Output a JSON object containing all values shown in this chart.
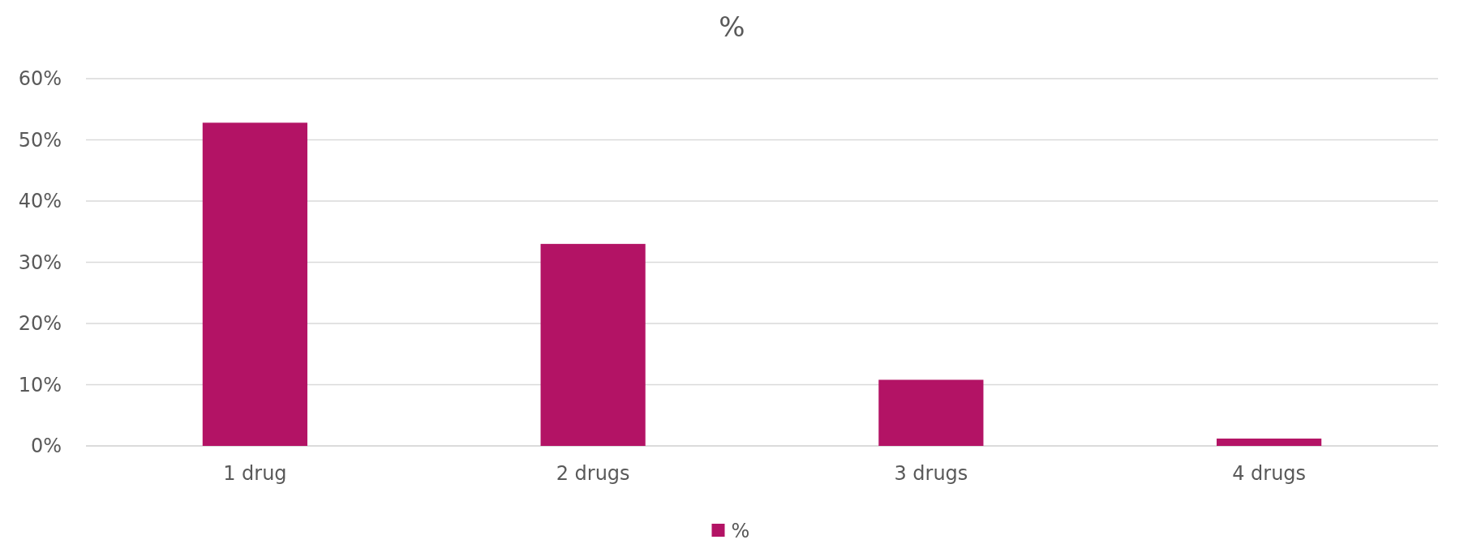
{
  "chart_data": {
    "type": "bar",
    "title": "%",
    "categories": [
      "1 drug",
      "2 drugs",
      "3 drugs",
      "4 drugs"
    ],
    "series": [
      {
        "name": "%",
        "color": "#b31365",
        "values": [
          52.8,
          33.0,
          10.8,
          1.2
        ]
      }
    ],
    "ylim": [
      0,
      60
    ],
    "yticks": [
      {
        "value": 0,
        "label": "0%"
      },
      {
        "value": 10,
        "label": "10%"
      },
      {
        "value": 20,
        "label": "20%"
      },
      {
        "value": 30,
        "label": "30%"
      },
      {
        "value": 40,
        "label": "40%"
      },
      {
        "value": 50,
        "label": "50%"
      },
      {
        "value": 60,
        "label": "60%"
      }
    ],
    "grid": "y",
    "legend": "bottom"
  }
}
